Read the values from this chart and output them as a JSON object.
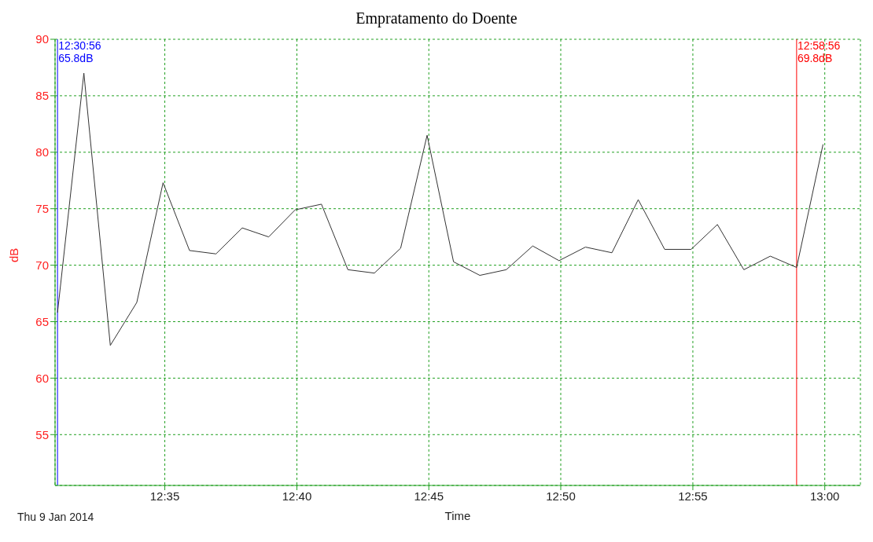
{
  "chart_data": {
    "type": "line",
    "title": "Empratamento do Doente",
    "xlabel": "Time",
    "ylabel": "dB",
    "annotations": [
      "Thu 9 Jan 2014",
      "12:30:56\n65.8dB",
      "12:58:56\n69.8dB"
    ],
    "x": [
      12.515556,
      12.5322,
      12.5489,
      12.5656,
      12.5822,
      12.5989,
      12.6156,
      12.6322,
      12.6489,
      12.6656,
      12.6822,
      12.6989,
      12.7156,
      12.7322,
      12.7489,
      12.7656,
      12.7822,
      12.7989,
      12.8156,
      12.8322,
      12.8489,
      12.8656,
      12.8822,
      12.8989,
      12.9156,
      12.9322,
      12.9489,
      12.9656,
      12.982222,
      12.9989
    ],
    "series": [
      {
        "color": "#333333",
        "values": [
          65.8,
          87.0,
          62.9,
          66.7,
          77.3,
          71.3,
          71.0,
          73.3,
          72.5,
          74.9,
          75.4,
          69.6,
          69.3,
          71.5,
          81.5,
          70.3,
          69.1,
          69.6,
          71.7,
          70.4,
          71.6,
          71.1,
          75.8,
          71.4,
          71.4,
          73.6,
          69.6,
          70.8,
          69.8,
          80.7
        ]
      }
    ],
    "xlim": [
      12.514,
      13.0225
    ],
    "xticks": [
      {
        "value": 12.5833,
        "label": "12:35"
      },
      {
        "value": 12.6667,
        "label": "12:40"
      },
      {
        "value": 12.75,
        "label": "12:45"
      },
      {
        "value": 12.8333,
        "label": "12:50"
      },
      {
        "value": 12.9167,
        "label": "12:55"
      },
      {
        "value": 13,
        "label": "13:00"
      }
    ],
    "ylim": [
      50.5,
      90
    ],
    "yticks": [
      55,
      60,
      65,
      70,
      75,
      80,
      85,
      90
    ],
    "grid": true,
    "marker": "none",
    "line_style": "solid",
    "ref_lines": [
      {
        "axis": "x",
        "value": 12.515556,
        "color": "#0000ff"
      },
      {
        "axis": "x",
        "value": 12.982222,
        "color": "#ff0000"
      }
    ]
  }
}
